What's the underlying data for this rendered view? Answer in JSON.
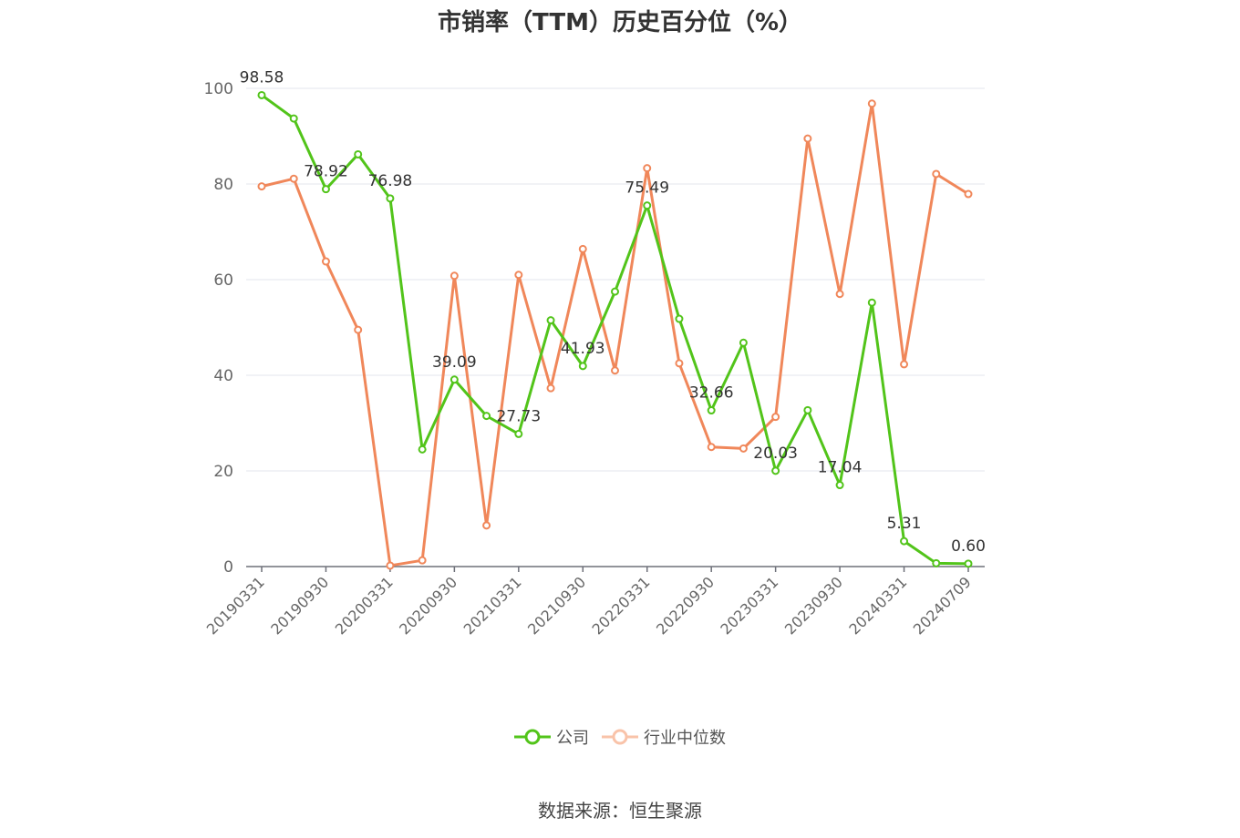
{
  "chart_data": {
    "type": "line",
    "title": "市销率（TTM）历史百分位（%）",
    "source": "数据来源：恒生聚源",
    "x_tick_labels": [
      "20190331",
      "20190930",
      "20200331",
      "20200930",
      "20210331",
      "20210930",
      "20220331",
      "20220930",
      "20230331",
      "20230930",
      "20240331",
      "20240709"
    ],
    "y_tick_labels": [
      "0",
      "20",
      "40",
      "60",
      "80",
      "100"
    ],
    "ylim": [
      0,
      100
    ],
    "grid": true,
    "legend_position": "bottom",
    "series": [
      {
        "name": "公司",
        "color": "#52c41a",
        "values": [
          98.58,
          93.7,
          78.92,
          86.2,
          76.98,
          24.5,
          39.09,
          31.5,
          27.73,
          51.5,
          41.93,
          57.5,
          75.49,
          51.8,
          32.66,
          46.8,
          20.03,
          32.7,
          17.04,
          55.2,
          5.31,
          0.7,
          0.6
        ],
        "data_labels": {
          "0": "98.58",
          "2": "78.92",
          "4": "76.98",
          "6": "39.09",
          "8": "27.73",
          "10": "41.93",
          "12": "75.49",
          "14": "32.66",
          "16": "20.03",
          "18": "17.04",
          "20": "5.31",
          "22": "0.60"
        }
      },
      {
        "name": "行业中位数",
        "color": "#f0875a",
        "values": [
          79.5,
          81.1,
          63.8,
          49.5,
          0.2,
          1.3,
          60.8,
          8.6,
          61.0,
          37.3,
          66.4,
          41.0,
          83.3,
          42.5,
          25.0,
          24.7,
          31.3,
          89.5,
          57.0,
          96.8,
          42.3,
          82.1,
          77.9
        ]
      }
    ]
  }
}
